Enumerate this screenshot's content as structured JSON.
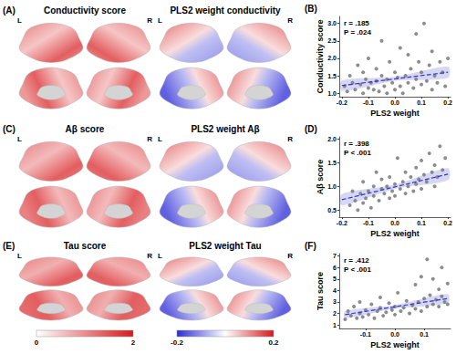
{
  "panels": [
    "(A)",
    "(C)",
    "(E)"
  ],
  "hemispheres": [
    "L",
    "R"
  ],
  "brain_columns": [
    {
      "titles": [
        "Conductivity score",
        "Aβ score",
        "Tau score"
      ],
      "colorbar": {
        "range": [
          0,
          2
        ],
        "ticks": [
          0,
          2
        ],
        "colors": [
          "#ffffff",
          "#d7191c"
        ]
      }
    },
    {
      "titles": [
        "PLS2 weight conductivity",
        "PLS2 weight Aβ",
        "PLS2 weight Tau"
      ],
      "colorbar": {
        "range": [
          -0.2,
          0.2
        ],
        "ticks": [
          -0.2,
          0.2
        ],
        "colors": [
          "#2b2bd6",
          "#ffffff",
          "#d7191c"
        ]
      }
    }
  ],
  "chart_data": [
    {
      "type": "scatter",
      "label": "(B)",
      "xlabel": "PLS2 weight",
      "ylabel": "Conductivity score",
      "annotations": [
        "r = .185",
        "P = .024"
      ],
      "xlim": [
        -0.21,
        0.21
      ],
      "xticks": [
        -0.2,
        -0.1,
        {
          "value": 0,
          "label": "0.0"
        },
        0.1,
        0.2
      ],
      "ylim": [
        0.9,
        3.2
      ],
      "yticks": [
        {
          "value": 1,
          "label": "1.0"
        },
        1.5,
        {
          "value": 2,
          "label": "2.0"
        },
        2.5,
        {
          "value": 3,
          "label": "3.0"
        }
      ],
      "color": "#808080",
      "x": [
        -0.19,
        -0.18,
        -0.17,
        -0.16,
        -0.15,
        -0.14,
        -0.13,
        -0.12,
        -0.12,
        -0.11,
        -0.1,
        -0.1,
        -0.09,
        -0.08,
        -0.07,
        -0.07,
        -0.06,
        -0.05,
        -0.05,
        -0.04,
        -0.03,
        -0.03,
        -0.02,
        -0.01,
        0.0,
        0.0,
        0.01,
        0.02,
        0.02,
        0.03,
        0.04,
        0.05,
        0.05,
        0.06,
        0.07,
        0.08,
        0.08,
        0.09,
        0.1,
        0.1,
        0.11,
        0.12,
        0.13,
        0.14,
        0.14,
        0.15,
        0.16,
        0.17,
        0.18,
        0.19,
        0.2
      ],
      "values": [
        1.2,
        1.05,
        1.5,
        1.3,
        1.1,
        1.8,
        1.25,
        1.0,
        1.6,
        1.4,
        1.15,
        2.0,
        1.3,
        1.1,
        1.7,
        1.35,
        1.05,
        1.5,
        2.5,
        1.2,
        1.0,
        1.4,
        1.9,
        1.3,
        1.1,
        1.6,
        1.45,
        2.3,
        1.2,
        1.0,
        1.5,
        1.3,
        2.1,
        1.7,
        1.15,
        1.4,
        2.7,
        1.9,
        1.25,
        1.6,
        3.0,
        1.35,
        1.8,
        1.1,
        2.2,
        1.5,
        1.3,
        1.9,
        1.6,
        1.2,
        2.0
      ],
      "fit": {
        "x": [
          -0.2,
          0.0,
          0.2
        ],
        "values": [
          1.22,
          1.41,
          1.6
        ],
        "lower": [
          1.07,
          1.35,
          1.44
        ],
        "upper": [
          1.37,
          1.47,
          1.76
        ],
        "color": "#3333cc",
        "line_style": "dashed"
      }
    },
    {
      "type": "scatter",
      "label": "(D)",
      "xlabel": "PLS2 weight",
      "ylabel": "Aβ score",
      "annotations": [
        "r = .398",
        "P < .001"
      ],
      "xlim": [
        -0.21,
        0.21
      ],
      "xticks": [
        -0.2,
        -0.1,
        {
          "value": 0,
          "label": "0.0"
        },
        0.1,
        0.2
      ],
      "ylim": [
        0.35,
        2.05
      ],
      "yticks": [
        0.5,
        {
          "value": 1,
          "label": "1.0"
        },
        1.5,
        {
          "value": 2,
          "label": "2.0"
        }
      ],
      "color": "#808080",
      "x": [
        -0.17,
        -0.16,
        -0.15,
        -0.14,
        -0.13,
        -0.12,
        -0.12,
        -0.11,
        -0.1,
        -0.09,
        -0.08,
        -0.08,
        -0.07,
        -0.06,
        -0.05,
        -0.05,
        -0.04,
        -0.03,
        -0.02,
        -0.02,
        -0.01,
        0.0,
        0.0,
        0.01,
        0.02,
        0.03,
        0.04,
        0.04,
        0.05,
        0.06,
        0.07,
        0.08,
        0.08,
        0.09,
        0.1,
        0.1,
        0.11,
        0.12,
        0.13,
        0.14,
        0.15,
        0.15,
        0.16,
        0.17,
        0.18,
        0.19
      ],
      "values": [
        0.6,
        0.9,
        0.7,
        0.5,
        0.85,
        0.65,
        1.1,
        0.75,
        0.9,
        0.55,
        1.0,
        0.8,
        1.3,
        0.7,
        0.95,
        1.15,
        0.85,
        1.0,
        0.75,
        1.2,
        0.9,
        1.05,
        0.8,
        1.6,
        0.95,
        1.1,
        0.85,
        1.3,
        1.0,
        1.2,
        0.9,
        1.4,
        1.05,
        1.15,
        1.55,
        0.95,
        1.25,
        1.1,
        1.7,
        1.3,
        1.0,
        1.45,
        1.2,
        1.85,
        1.35,
        1.6
      ],
      "fit": {
        "x": [
          -0.2,
          0.0,
          0.2
        ],
        "values": [
          0.72,
          0.99,
          1.26
        ],
        "lower": [
          0.6,
          0.95,
          1.13
        ],
        "upper": [
          0.84,
          1.04,
          1.39
        ],
        "color": "#3333cc",
        "line_style": "dashed"
      }
    },
    {
      "type": "scatter",
      "label": "(F)",
      "xlabel": "PLS2 weight",
      "ylabel": "Tau score",
      "annotations": [
        "r = .412",
        "P < .001"
      ],
      "xlim": [
        -0.19,
        0.19
      ],
      "xticks": [
        -0.1,
        {
          "value": 0,
          "label": "0.0"
        },
        0.1
      ],
      "ylim": [
        0.7,
        7.2
      ],
      "yticks": [
        1,
        2,
        3,
        4,
        5,
        6,
        7
      ],
      "color": "#808080",
      "x": [
        -0.17,
        -0.16,
        -0.15,
        -0.14,
        -0.13,
        -0.12,
        -0.12,
        -0.11,
        -0.1,
        -0.09,
        -0.08,
        -0.07,
        -0.06,
        -0.05,
        -0.05,
        -0.04,
        -0.03,
        -0.02,
        -0.01,
        0.0,
        0.0,
        0.01,
        0.02,
        0.03,
        0.04,
        0.05,
        0.06,
        0.07,
        0.07,
        0.08,
        0.09,
        0.09,
        0.1,
        0.11,
        0.11,
        0.12,
        0.13,
        0.13,
        0.14,
        0.15,
        0.15,
        0.16,
        0.16,
        0.17,
        0.18,
        0.18
      ],
      "values": [
        1.5,
        2.2,
        1.8,
        2.6,
        1.6,
        2.0,
        3.0,
        1.7,
        2.3,
        1.9,
        2.8,
        1.6,
        2.2,
        2.5,
        3.4,
        1.8,
        2.1,
        2.9,
        2.3,
        1.9,
        2.6,
        3.8,
        2.2,
        2.5,
        3.1,
        2.0,
        2.7,
        4.5,
        2.4,
        3.0,
        2.2,
        5.2,
        3.3,
        2.6,
        6.7,
        3.6,
        2.8,
        5.0,
        3.2,
        4.1,
        2.6,
        3.5,
        6.0,
        3.0,
        4.6,
        2.8
      ],
      "fit": {
        "x": [
          -0.17,
          0.0,
          0.18
        ],
        "values": [
          1.9,
          2.58,
          3.3
        ],
        "lower": [
          1.6,
          2.42,
          2.9
        ],
        "upper": [
          2.2,
          2.74,
          3.7
        ],
        "color": "#3333cc",
        "line_style": "dashed"
      }
    }
  ]
}
